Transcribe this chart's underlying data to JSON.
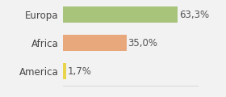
{
  "categories": [
    "America",
    "Africa",
    "Europa"
  ],
  "values": [
    1.7,
    35.0,
    63.3
  ],
  "bar_colors": [
    "#e8d44d",
    "#e8a87c",
    "#a8c47a"
  ],
  "labels": [
    "1,7%",
    "35,0%",
    "63,3%"
  ],
  "xlim": [
    0,
    75
  ],
  "background_color": "#f2f2f2",
  "bar_height": 0.55,
  "label_fontsize": 8.5,
  "tick_fontsize": 8.5
}
